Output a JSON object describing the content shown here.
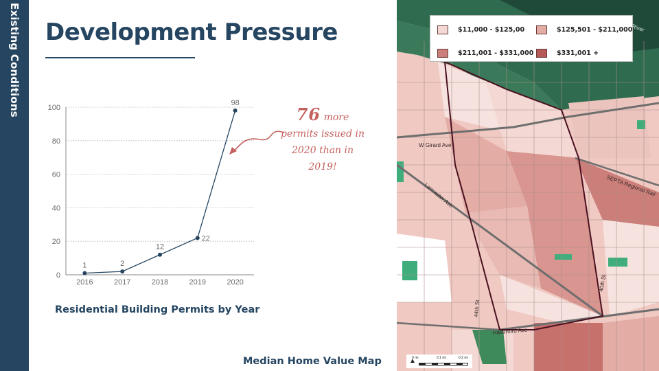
{
  "sidebar": {
    "label": "Existing Conditions"
  },
  "header": {
    "title": "Development Pressure"
  },
  "chart_data": {
    "type": "line",
    "x": [
      "2016",
      "2017",
      "2018",
      "2019",
      "2020"
    ],
    "y": [
      1,
      2,
      12,
      22,
      98
    ],
    "data_labels": [
      "1",
      "2",
      "12",
      "22",
      "98"
    ],
    "ylim": [
      0,
      100
    ],
    "yticks": [
      "0",
      "20",
      "40",
      "60",
      "80",
      "100"
    ],
    "grid": true,
    "title": "Residential Building Permits by Year",
    "line_color": "#254561"
  },
  "annotation": {
    "number": "76",
    "line1": "more",
    "line2": "permits issued in",
    "line3": "2020 than in",
    "line4": "2019!",
    "color": "#c4615e"
  },
  "map": {
    "caption": "Median Home Value Map",
    "legend": [
      {
        "label": "$11,000 - $125,00",
        "color": "#f3d8d3"
      },
      {
        "label": "$125,501 - $211,000",
        "color": "#e3aca5"
      },
      {
        "label": "$211,001 - $331,000",
        "color": "#cc7f7a"
      },
      {
        "label": "$331,001 +",
        "color": "#b55a57"
      }
    ],
    "street_labels": [
      "W Girard Ave",
      "Lancaster Ave",
      "SEPTA Regional Rail",
      "Haverford Ave",
      "44th St",
      "40th St",
      "River"
    ],
    "scale_labels": [
      "0 mi",
      "0.1 mi",
      "0.2 mi"
    ]
  }
}
